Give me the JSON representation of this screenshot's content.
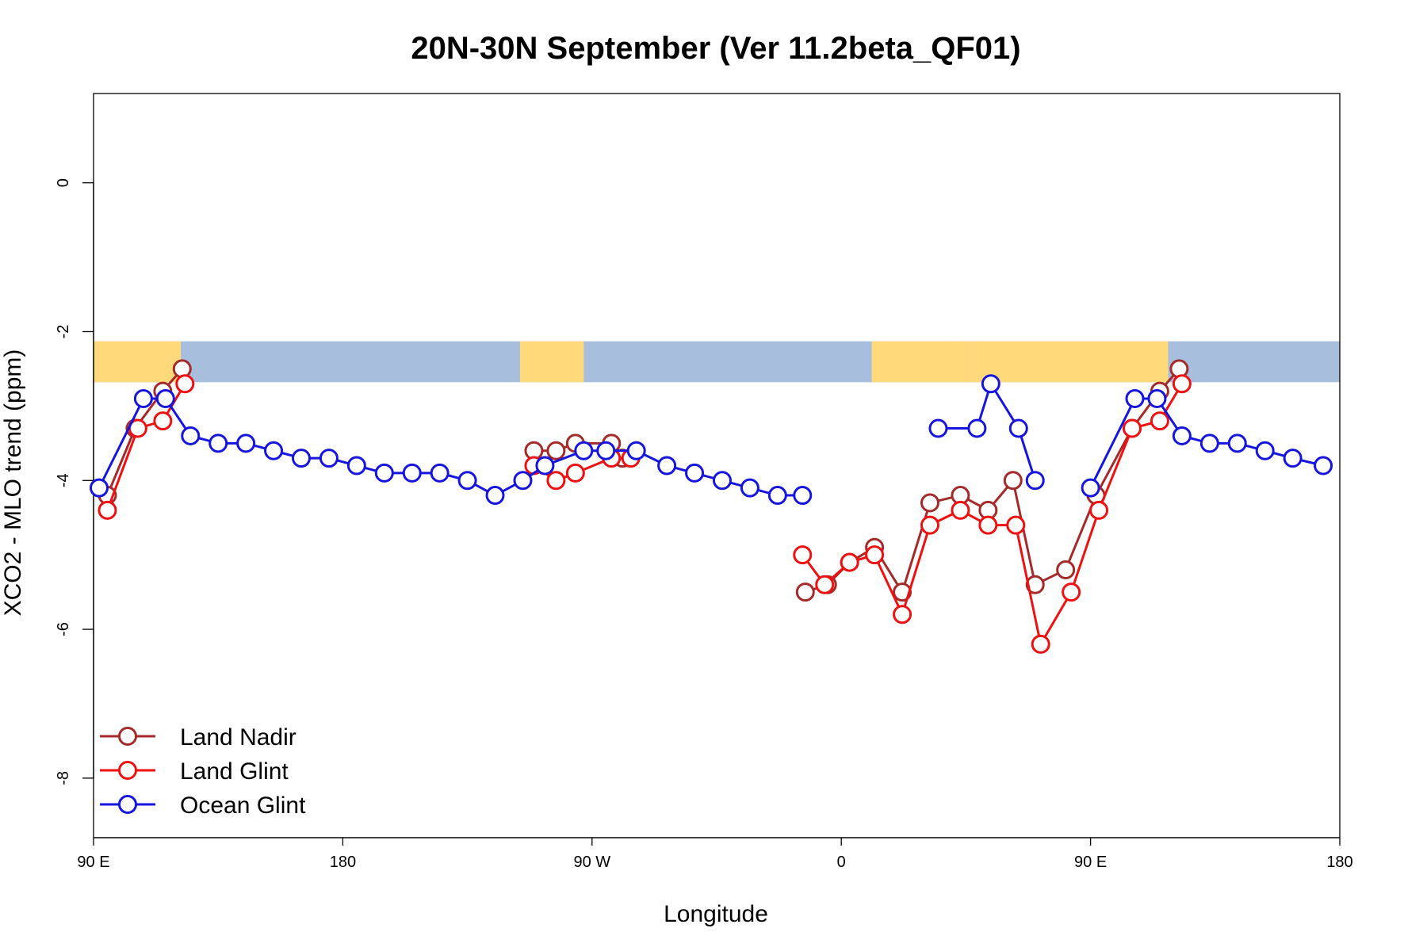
{
  "chart_data": {
    "type": "line",
    "title": "20N-30N September (Ver 11.2beta_QF01)",
    "xlabel": "Longitude",
    "ylabel": "XCO2 - MLO trend (ppm)",
    "xlim": [
      90,
      540
    ],
    "ylim": [
      -8.8,
      1.2
    ],
    "x_ticks": [
      {
        "value": 90,
        "label": "90 E"
      },
      {
        "value": 180,
        "label": "180"
      },
      {
        "value": 270,
        "label": "90 W"
      },
      {
        "value": 360,
        "label": "0"
      },
      {
        "value": 450,
        "label": "90 E"
      },
      {
        "value": 540,
        "label": "180"
      }
    ],
    "y_ticks": [
      {
        "value": 0,
        "label": "0"
      },
      {
        "value": -2,
        "label": "-2"
      },
      {
        "value": -4,
        "label": "-4"
      },
      {
        "value": -6,
        "label": "-6"
      },
      {
        "value": -8,
        "label": "-8"
      }
    ],
    "grid": false,
    "legend_position": "bottom-left",
    "map_strip": {
      "y_range": [
        -2.68,
        -2.13
      ],
      "land_color": "#FFD97A",
      "ocean_color": "#A8BEDD",
      "land_x_ranges": [
        [
          90,
          121.5
        ],
        [
          244,
          267
        ],
        [
          371,
          405
        ],
        [
          405,
          478
        ],
        [
          541,
          571.5
        ]
      ]
    },
    "series": [
      {
        "name": "Land Nadir",
        "color": "#A52A2A",
        "segments": [
          [
            [
              95,
              -4.2
            ],
            [
              105,
              -3.3
            ],
            [
              115,
              -2.8
            ],
            [
              122,
              -2.5
            ]
          ],
          [
            [
              249,
              -3.6
            ],
            [
              257,
              -3.6
            ],
            [
              264,
              -3.5
            ],
            [
              277,
              -3.5
            ],
            [
              281,
              -3.7
            ]
          ],
          [
            [
              347,
              -5.5
            ],
            [
              355,
              -5.4
            ],
            [
              363,
              -5.1
            ],
            [
              372,
              -4.9
            ],
            [
              382,
              -5.5
            ],
            [
              392,
              -4.3
            ],
            [
              403,
              -4.2
            ],
            [
              413,
              -4.4
            ],
            [
              422,
              -4.0
            ],
            [
              430,
              -5.4
            ],
            [
              441,
              -5.2
            ],
            [
              452,
              -4.2
            ],
            [
              465,
              -3.3
            ],
            [
              475,
              -2.8
            ],
            [
              482,
              -2.5
            ]
          ]
        ]
      },
      {
        "name": "Land Glint",
        "color": "#EE1111",
        "segments": [
          [
            [
              95,
              -4.4
            ],
            [
              106,
              -3.3
            ],
            [
              115,
              -3.2
            ],
            [
              123,
              -2.7
            ]
          ],
          [
            [
              249,
              -3.8
            ],
            [
              257,
              -4.0
            ],
            [
              264,
              -3.9
            ],
            [
              277,
              -3.7
            ],
            [
              284,
              -3.7
            ]
          ],
          [
            [
              346,
              -5.0
            ],
            [
              354,
              -5.4
            ],
            [
              363,
              -5.1
            ],
            [
              372,
              -5.0
            ],
            [
              382,
              -5.8
            ],
            [
              392,
              -4.6
            ],
            [
              403,
              -4.4
            ],
            [
              413,
              -4.6
            ],
            [
              423,
              -4.6
            ],
            [
              432,
              -6.2
            ],
            [
              443,
              -5.5
            ],
            [
              453,
              -4.4
            ],
            [
              465,
              -3.3
            ],
            [
              475,
              -3.2
            ],
            [
              483,
              -2.7
            ]
          ]
        ]
      },
      {
        "name": "Ocean Glint",
        "color": "#1515DD",
        "segments": [
          [
            [
              92,
              -4.1
            ],
            [
              108,
              -2.9
            ],
            [
              116,
              -2.9
            ],
            [
              125,
              -3.4
            ],
            [
              135,
              -3.5
            ],
            [
              145,
              -3.5
            ],
            [
              155,
              -3.6
            ],
            [
              165,
              -3.7
            ],
            [
              175,
              -3.7
            ],
            [
              185,
              -3.8
            ],
            [
              195,
              -3.9
            ],
            [
              205,
              -3.9
            ],
            [
              215,
              -3.9
            ],
            [
              225,
              -4.0
            ],
            [
              235,
              -4.2
            ],
            [
              245,
              -4.0
            ],
            [
              253,
              -3.8
            ],
            [
              267,
              -3.6
            ],
            [
              275,
              -3.6
            ],
            [
              286,
              -3.6
            ],
            [
              297,
              -3.8
            ],
            [
              307,
              -3.9
            ],
            [
              317,
              -4.0
            ],
            [
              327,
              -4.1
            ],
            [
              337,
              -4.2
            ],
            [
              346,
              -4.2
            ]
          ],
          [
            [
              395,
              -3.3
            ],
            [
              409,
              -3.3
            ],
            [
              414,
              -2.7
            ],
            [
              424,
              -3.3
            ],
            [
              430,
              -4.0
            ]
          ],
          [
            [
              450,
              -4.1
            ],
            [
              466,
              -2.9
            ],
            [
              474,
              -2.9
            ],
            [
              483,
              -3.4
            ],
            [
              493,
              -3.5
            ],
            [
              503,
              -3.5
            ],
            [
              513,
              -3.6
            ],
            [
              523,
              -3.7
            ],
            [
              534,
              -3.8
            ]
          ]
        ]
      }
    ]
  }
}
